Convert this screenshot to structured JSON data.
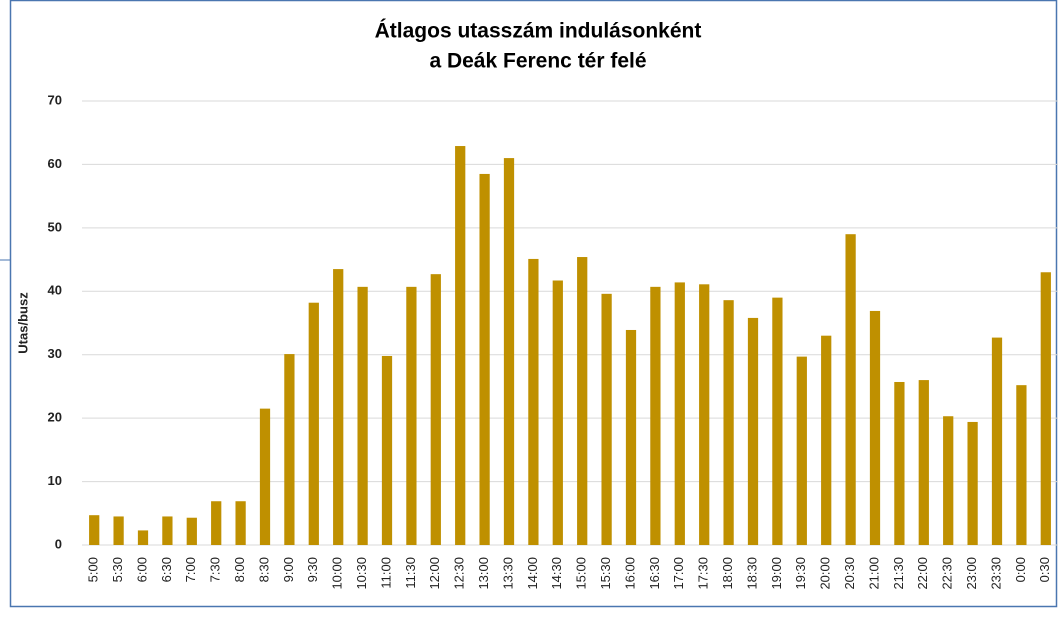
{
  "chart_data": {
    "type": "bar",
    "title": [
      "Átlagos utasszám indulásonként",
      "a Deák Ferenc tér felé"
    ],
    "y_label": "Utas/busz",
    "categories": [
      "5:00",
      "5:30",
      "6:00",
      "6:30",
      "7:00",
      "7:30",
      "8:00",
      "8:30",
      "9:00",
      "9:30",
      "10:00",
      "10:30",
      "11:00",
      "11:30",
      "12:00",
      "12:30",
      "13:00",
      "13:30",
      "14:00",
      "14:30",
      "15:00",
      "15:30",
      "16:00",
      "16:30",
      "17:00",
      "17:30",
      "18:00",
      "18:30",
      "19:00",
      "19:30",
      "20:00",
      "20:30",
      "21:00",
      "21:30",
      "22:00",
      "22:30",
      "23:00",
      "23:30",
      "0:00",
      "0:30"
    ],
    "values": [
      4.7,
      4.5,
      2.3,
      4.5,
      4.3,
      6.9,
      6.9,
      21.5,
      30.1,
      38.2,
      43.5,
      40.7,
      29.8,
      40.7,
      42.7,
      62.9,
      58.5,
      61.0,
      45.1,
      41.7,
      45.4,
      39.6,
      33.9,
      40.7,
      41.4,
      41.1,
      38.6,
      35.8,
      39.0,
      29.7,
      33.0,
      49.0,
      36.9,
      25.7,
      26.0,
      20.3,
      19.4,
      32.7,
      25.2,
      43.0
    ],
    "color": "#bf9000",
    "ylim": [
      0,
      70
    ],
    "yticks": [
      0,
      10,
      20,
      30,
      40,
      50,
      60,
      70
    ],
    "grid": true
  }
}
